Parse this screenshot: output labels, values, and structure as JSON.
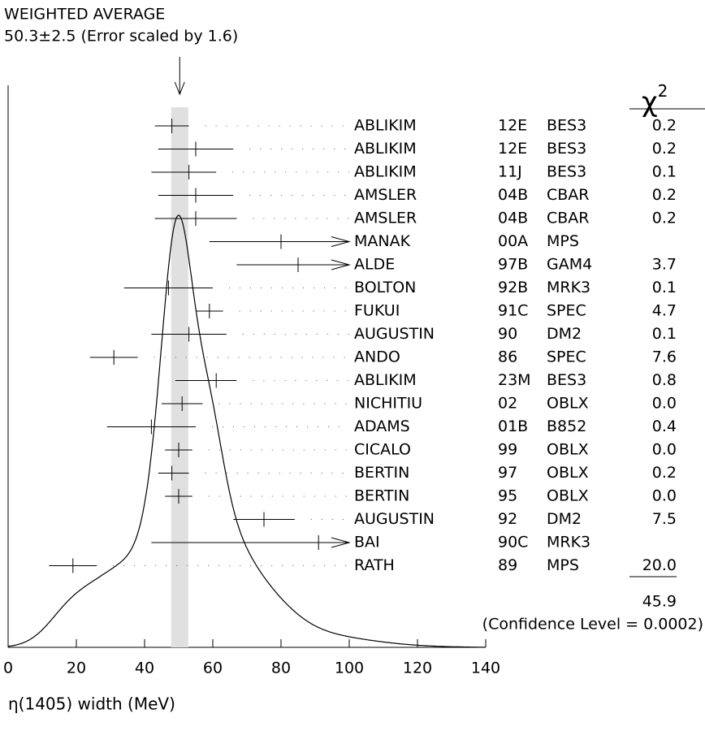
{
  "chart_data": {
    "type": "ideogram",
    "title": "WEIGHTED AVERAGE",
    "subtitle": "50.3±2.5 (Error scaled by 1.6)",
    "average": 50.3,
    "average_error": 2.5,
    "x_label": "η(1405) width (MeV)",
    "xlim": [
      0,
      140
    ],
    "xticks": [
      0,
      20,
      40,
      60,
      80,
      100,
      120,
      140
    ],
    "chi2_symbol": "χ",
    "chi2_power": "2",
    "chi2_total": "45.9",
    "confidence_level": "(Confidence Level = 0.0002)",
    "measurements": [
      {
        "author": "ABLIKIM",
        "ref": "12E",
        "experiment": "BES3",
        "value": 48,
        "error_minus": 5,
        "error_plus": 5,
        "chi2": "0.2"
      },
      {
        "author": "ABLIKIM",
        "ref": "12E",
        "experiment": "BES3",
        "value": 55,
        "error_minus": 11,
        "error_plus": 11,
        "chi2": "0.2"
      },
      {
        "author": "ABLIKIM",
        "ref": "11J",
        "experiment": "BES3",
        "value": 53,
        "error_minus": 11,
        "error_plus": 8,
        "chi2": "0.1"
      },
      {
        "author": "AMSLER",
        "ref": "04B",
        "experiment": "CBAR",
        "value": 55,
        "error_minus": 11,
        "error_plus": 11,
        "chi2": "0.2"
      },
      {
        "author": "AMSLER",
        "ref": "04B",
        "experiment": "CBAR",
        "value": 55,
        "error_minus": 12,
        "error_plus": 12,
        "chi2": "0.2"
      },
      {
        "author": "MANAK",
        "ref": "00A",
        "experiment": "MPS",
        "value": 80,
        "error_minus": 21,
        "error_plus": 21
      },
      {
        "author": "ALDE",
        "ref": "97B",
        "experiment": "GAM4",
        "value": 85,
        "error_minus": 18,
        "error_plus": 18,
        "chi2": "3.7"
      },
      {
        "author": "BOLTON",
        "ref": "92B",
        "experiment": "MRK3",
        "value": 47,
        "error_minus": 13,
        "error_plus": 13,
        "chi2": "0.1"
      },
      {
        "author": "FUKUI",
        "ref": "91C",
        "experiment": "SPEC",
        "value": 59,
        "error_minus": 4,
        "error_plus": 4,
        "chi2": "4.7"
      },
      {
        "author": "AUGUSTIN",
        "ref": "90",
        "experiment": "DM2",
        "value": 53,
        "error_minus": 11,
        "error_plus": 11,
        "chi2": "0.1"
      },
      {
        "author": "ANDO",
        "ref": "86",
        "experiment": "SPEC",
        "value": 31,
        "error_minus": 7,
        "error_plus": 7,
        "chi2": "7.6"
      },
      {
        "author": "ABLIKIM",
        "ref": "23M",
        "experiment": "BES3",
        "value": 61,
        "error_minus": 12,
        "error_plus": 6,
        "chi2": "0.8"
      },
      {
        "author": "NICHITIU",
        "ref": "02",
        "experiment": "OBLX",
        "value": 51,
        "error_minus": 6,
        "error_plus": 6,
        "chi2": "0.0"
      },
      {
        "author": "ADAMS",
        "ref": "01B",
        "experiment": "B852",
        "value": 42,
        "error_minus": 13,
        "error_plus": 13,
        "chi2": "0.4"
      },
      {
        "author": "CICALO",
        "ref": "99",
        "experiment": "OBLX",
        "value": 50,
        "error_minus": 4,
        "error_plus": 4,
        "chi2": "0.0"
      },
      {
        "author": "BERTIN",
        "ref": "97",
        "experiment": "OBLX",
        "value": 48,
        "error_minus": 4,
        "error_plus": 5,
        "chi2": "0.2"
      },
      {
        "author": "BERTIN",
        "ref": "95",
        "experiment": "OBLX",
        "value": 50,
        "error_minus": 4,
        "error_plus": 4,
        "chi2": "0.0"
      },
      {
        "author": "AUGUSTIN",
        "ref": "92",
        "experiment": "DM2",
        "value": 75,
        "error_minus": 9,
        "error_plus": 9,
        "chi2": "7.5"
      },
      {
        "author": "BAI",
        "ref": "90C",
        "experiment": "MRK3",
        "value": 91,
        "error_minus": 49,
        "error_plus": 49
      },
      {
        "author": "RATH",
        "ref": "89",
        "experiment": "MPS",
        "value": 19,
        "error_minus": 7,
        "error_plus": 7,
        "chi2": "20.0"
      }
    ]
  }
}
